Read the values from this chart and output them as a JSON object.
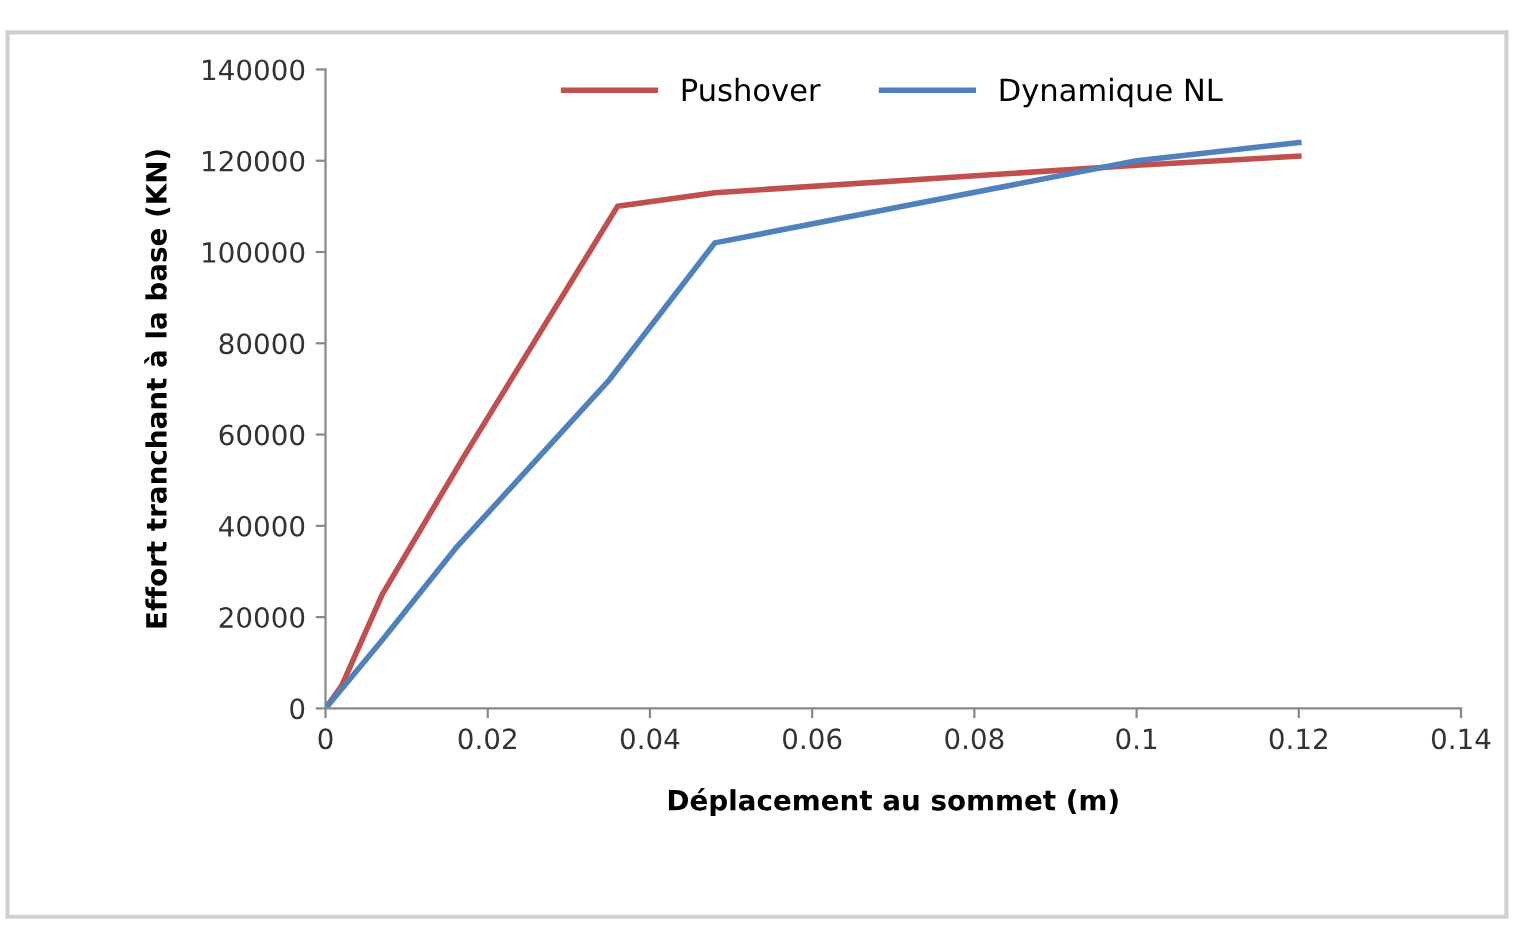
{
  "chart_data": {
    "type": "line",
    "xlabel": "Déplacement au sommet (m)",
    "ylabel": "Effort tranchant à la base (KN)",
    "series": [
      {
        "name": "Pushover",
        "color": "#c0504d",
        "x": [
          0,
          0.002,
          0.007,
          0.017,
          0.036,
          0.048,
          0.1,
          0.12
        ],
        "values": [
          0,
          5000,
          25000,
          55000,
          110000,
          113000,
          119000,
          121000
        ]
      },
      {
        "name": "Dynamique NL",
        "color": "#4f81bd",
        "x": [
          0,
          0.007,
          0.016,
          0.035,
          0.048,
          0.1,
          0.12
        ],
        "values": [
          0,
          15000,
          35000,
          72000,
          102000,
          120000,
          124000
        ]
      }
    ],
    "xlim": [
      0,
      0.14
    ],
    "xticks": [
      0,
      0.02,
      0.04,
      0.06,
      0.08,
      0.1,
      0.12,
      0.14
    ],
    "ylim": [
      0,
      140000
    ],
    "yticks": [
      0,
      20000,
      40000,
      60000,
      80000,
      100000,
      120000,
      140000
    ],
    "grid": false,
    "legend": "top",
    "marker": "none",
    "line_style": "solid"
  }
}
